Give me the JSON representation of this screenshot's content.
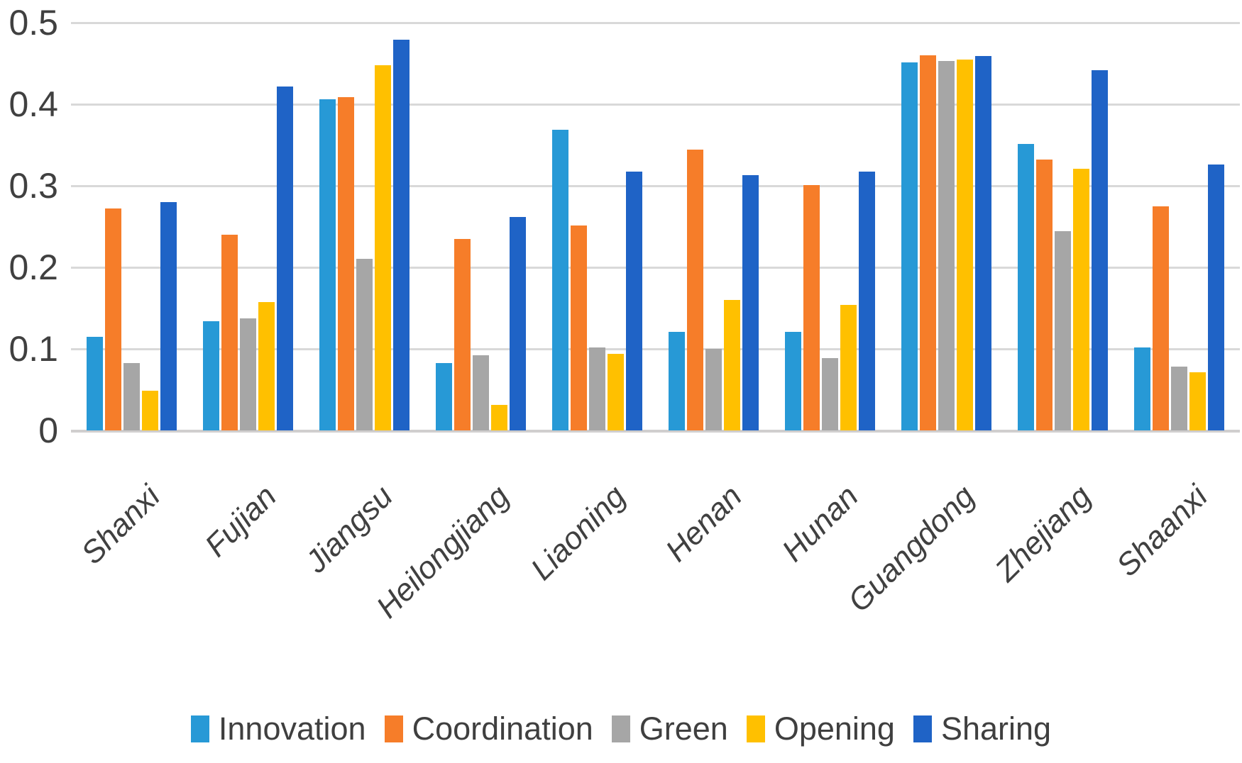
{
  "chart_data": {
    "type": "bar",
    "title": "",
    "xlabel": "",
    "ylabel": "",
    "categories": [
      "Shanxi",
      "Fujian",
      "Jiangsu",
      "Heilongjiang",
      "Liaoning",
      "Henan",
      "Hunan",
      "Guangdong",
      "Zhejiang",
      "Shaanxi"
    ],
    "series": [
      {
        "name": "Innovation",
        "color": "#2799d6",
        "values": [
          0.115,
          0.134,
          0.406,
          0.083,
          0.369,
          0.121,
          0.121,
          0.451,
          0.351,
          0.102
        ]
      },
      {
        "name": "Coordination",
        "color": "#f67d29",
        "values": [
          0.272,
          0.24,
          0.409,
          0.235,
          0.251,
          0.344,
          0.301,
          0.46,
          0.332,
          0.275
        ]
      },
      {
        "name": "Green",
        "color": "#a6a6a6",
        "values": [
          0.083,
          0.137,
          0.21,
          0.092,
          0.102,
          0.1,
          0.089,
          0.453,
          0.244,
          0.078
        ]
      },
      {
        "name": "Opening",
        "color": "#ffc000",
        "values": [
          0.049,
          0.157,
          0.448,
          0.031,
          0.094,
          0.16,
          0.154,
          0.455,
          0.321,
          0.071
        ]
      },
      {
        "name": "Sharing",
        "color": "#1f63c6",
        "values": [
          0.28,
          0.422,
          0.479,
          0.262,
          0.317,
          0.313,
          0.317,
          0.459,
          0.442,
          0.326
        ]
      }
    ],
    "ylim": [
      0,
      0.5
    ],
    "yticks": [
      "0",
      "0.1",
      "0.2",
      "0.3",
      "0.4",
      "0.5"
    ],
    "grid": true,
    "legend_position": "bottom",
    "colors": {
      "gridline": "#d9d9d9",
      "axis_line": "#d0cece",
      "tick_text": "#404040",
      "label_text": "#404040",
      "legend_text": "#3f3f3f",
      "background": "#ffffff"
    }
  }
}
